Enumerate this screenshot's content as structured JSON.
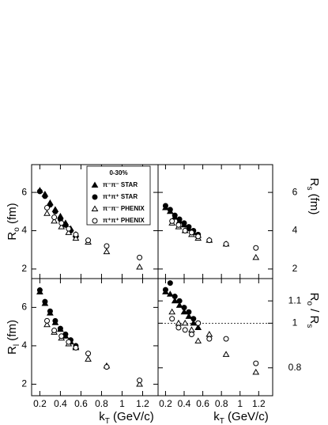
{
  "chart_data": [
    {
      "type": "scatter",
      "ylabel": {
        "main": "R",
        "sub": "o",
        "rest": " (fm)"
      },
      "xlim": [
        0.12,
        1.35
      ],
      "ylim": [
        1.5,
        7.45
      ],
      "xticks": [
        0.2,
        0.4,
        0.6,
        0.8,
        1,
        1.2
      ],
      "xtick_labels": false,
      "yticks": [
        2,
        4,
        6
      ],
      "yaxis_side": "left",
      "legend": "upper center",
      "legend_title": "0-30%",
      "series": [
        {
          "name": "π⁻π⁻ STAR",
          "marker": "triangle",
          "filled": true,
          "color": "#000",
          "x": [
            0.2,
            0.25,
            0.3,
            0.35,
            0.4,
            0.45,
            0.5,
            0.55
          ],
          "values": [
            6.1,
            5.9,
            5.45,
            5.1,
            4.75,
            4.4,
            4.1,
            3.8
          ]
        },
        {
          "name": "π⁺π⁺ STAR",
          "marker": "circle",
          "filled": true,
          "color": "#000",
          "x": [
            0.2,
            0.25,
            0.3,
            0.35,
            0.4,
            0.45,
            0.5,
            0.55
          ],
          "values": [
            6.05,
            5.8,
            5.35,
            5.0,
            4.6,
            4.3,
            4.0,
            3.7
          ]
        },
        {
          "name": "π⁻π⁻ PHENIX",
          "marker": "triangle",
          "filled": false,
          "color": "#000",
          "x": [
            0.27,
            0.34,
            0.41,
            0.48,
            0.55,
            0.67,
            0.85,
            1.17
          ],
          "values": [
            4.9,
            4.5,
            4.2,
            3.9,
            3.6,
            3.4,
            2.9,
            2.1
          ]
        },
        {
          "name": "π⁺π⁺ PHENIX",
          "marker": "circle",
          "filled": false,
          "color": "#000",
          "x": [
            0.27,
            0.34,
            0.41,
            0.48,
            0.55,
            0.67,
            0.85,
            1.17
          ],
          "values": [
            5.2,
            4.7,
            4.4,
            4.1,
            3.8,
            3.5,
            3.2,
            2.6
          ]
        }
      ]
    },
    {
      "type": "scatter",
      "ylabel": {
        "main": "R",
        "sub": "s",
        "rest": " (fm)"
      },
      "xlim": [
        0.12,
        1.35
      ],
      "ylim": [
        1.5,
        7.45
      ],
      "xticks": [
        0.2,
        0.4,
        0.6,
        0.8,
        1,
        1.2
      ],
      "xtick_labels": false,
      "yticks": [
        2,
        4,
        6
      ],
      "yaxis_side": "right",
      "series": [
        {
          "marker": "triangle",
          "filled": true,
          "color": "#000",
          "x": [
            0.2,
            0.25,
            0.3,
            0.35,
            0.4,
            0.45,
            0.5,
            0.55
          ],
          "values": [
            5.2,
            5.0,
            4.7,
            4.5,
            4.3,
            4.1,
            3.9,
            3.75
          ]
        },
        {
          "marker": "circle",
          "filled": true,
          "color": "#000",
          "x": [
            0.2,
            0.25,
            0.3,
            0.35,
            0.4,
            0.45,
            0.5,
            0.55
          ],
          "values": [
            5.3,
            5.1,
            4.8,
            4.6,
            4.4,
            4.2,
            4.0,
            3.8
          ]
        },
        {
          "marker": "triangle",
          "filled": false,
          "color": "#000",
          "x": [
            0.27,
            0.34,
            0.41,
            0.48,
            0.55,
            0.67,
            0.85,
            1.17
          ],
          "values": [
            4.4,
            4.2,
            4.0,
            3.8,
            3.6,
            3.5,
            3.3,
            2.6
          ]
        },
        {
          "marker": "circle",
          "filled": false,
          "color": "#000",
          "x": [
            0.27,
            0.34,
            0.41,
            0.48,
            0.55,
            0.67,
            0.85,
            1.17
          ],
          "values": [
            4.5,
            4.3,
            4.0,
            3.9,
            3.7,
            3.5,
            3.3,
            3.1
          ]
        }
      ]
    },
    {
      "type": "scatter",
      "ylabel": {
        "main": "R",
        "sub": "l",
        "rest": " (fm)"
      },
      "xlabel": {
        "main": "k",
        "sub": "T",
        "rest": " (GeV/c)"
      },
      "xlim": [
        0.12,
        1.35
      ],
      "ylim": [
        1.4,
        7.5
      ],
      "xticks": [
        0.2,
        0.4,
        0.6,
        0.8,
        1,
        1.2
      ],
      "xtick_labels": true,
      "yticks": [
        2,
        4,
        6
      ],
      "yaxis_side": "left",
      "series": [
        {
          "marker": "triangle",
          "filled": true,
          "color": "#000",
          "x": [
            0.2,
            0.25,
            0.3,
            0.35,
            0.4,
            0.45,
            0.5,
            0.55
          ],
          "values": [
            6.8,
            6.2,
            5.7,
            5.2,
            4.85,
            4.5,
            4.2,
            3.95
          ]
        },
        {
          "marker": "circle",
          "filled": true,
          "color": "#000",
          "x": [
            0.2,
            0.25,
            0.3,
            0.35,
            0.4,
            0.45,
            0.5,
            0.55
          ],
          "values": [
            6.9,
            6.3,
            5.8,
            5.3,
            4.9,
            4.6,
            4.3,
            4.0
          ]
        },
        {
          "marker": "triangle",
          "filled": false,
          "color": "#000",
          "x": [
            0.27,
            0.34,
            0.41,
            0.48,
            0.55,
            0.67,
            0.85,
            1.17
          ],
          "values": [
            5.1,
            4.7,
            4.4,
            4.1,
            3.9,
            3.3,
            2.95,
            2.0
          ]
        },
        {
          "marker": "circle",
          "filled": false,
          "color": "#000",
          "x": [
            0.27,
            0.34,
            0.41,
            0.48,
            0.55,
            0.67,
            0.85,
            1.17
          ],
          "values": [
            5.3,
            4.8,
            4.5,
            4.2,
            3.9,
            3.6,
            2.9,
            2.2
          ]
        }
      ]
    },
    {
      "type": "scatter",
      "ylabel": {
        "main": "R",
        "sub": "o",
        "rest": " / R",
        "sub2": "s"
      },
      "xlabel": {
        "main": "k",
        "sub": "T",
        "rest": " (GeV/c)"
      },
      "xlim": [
        0.12,
        1.35
      ],
      "ylim": [
        0.675,
        1.2
      ],
      "xticks": [
        0.2,
        0.4,
        0.6,
        0.8,
        1,
        1.2
      ],
      "xtick_labels": true,
      "yticks": [
        0.8,
        1,
        1.1
      ],
      "yaxis_side": "right",
      "reference_line": 1,
      "series": [
        {
          "marker": "triangle",
          "filled": true,
          "color": "#000",
          "x": [
            0.2,
            0.25,
            0.3,
            0.35,
            0.4,
            0.45,
            0.5,
            0.55
          ],
          "values": [
            1.14,
            1.13,
            1.1,
            1.08,
            1.05,
            1.03,
            1.0,
            0.98
          ]
        },
        {
          "marker": "circle",
          "filled": true,
          "color": "#000",
          "x": [
            0.2,
            0.25,
            0.3,
            0.35,
            0.4,
            0.45,
            0.5,
            0.55
          ],
          "values": [
            1.15,
            1.18,
            1.12,
            1.1,
            1.07,
            1.05,
            1.02,
            1.0
          ]
        },
        {
          "marker": "triangle",
          "filled": false,
          "color": "#000",
          "x": [
            0.27,
            0.34,
            0.41,
            0.48,
            0.55,
            0.67,
            0.85,
            1.17
          ],
          "values": [
            1.05,
            1.0,
            1.0,
            0.97,
            0.92,
            0.95,
            0.86,
            0.78
          ]
        },
        {
          "marker": "circle",
          "filled": false,
          "color": "#000",
          "x": [
            0.27,
            0.34,
            0.41,
            0.48,
            0.55,
            0.67,
            0.85,
            1.17
          ],
          "values": [
            1.02,
            0.98,
            0.97,
            0.95,
            1.0,
            0.93,
            0.93,
            0.82
          ]
        }
      ]
    }
  ]
}
